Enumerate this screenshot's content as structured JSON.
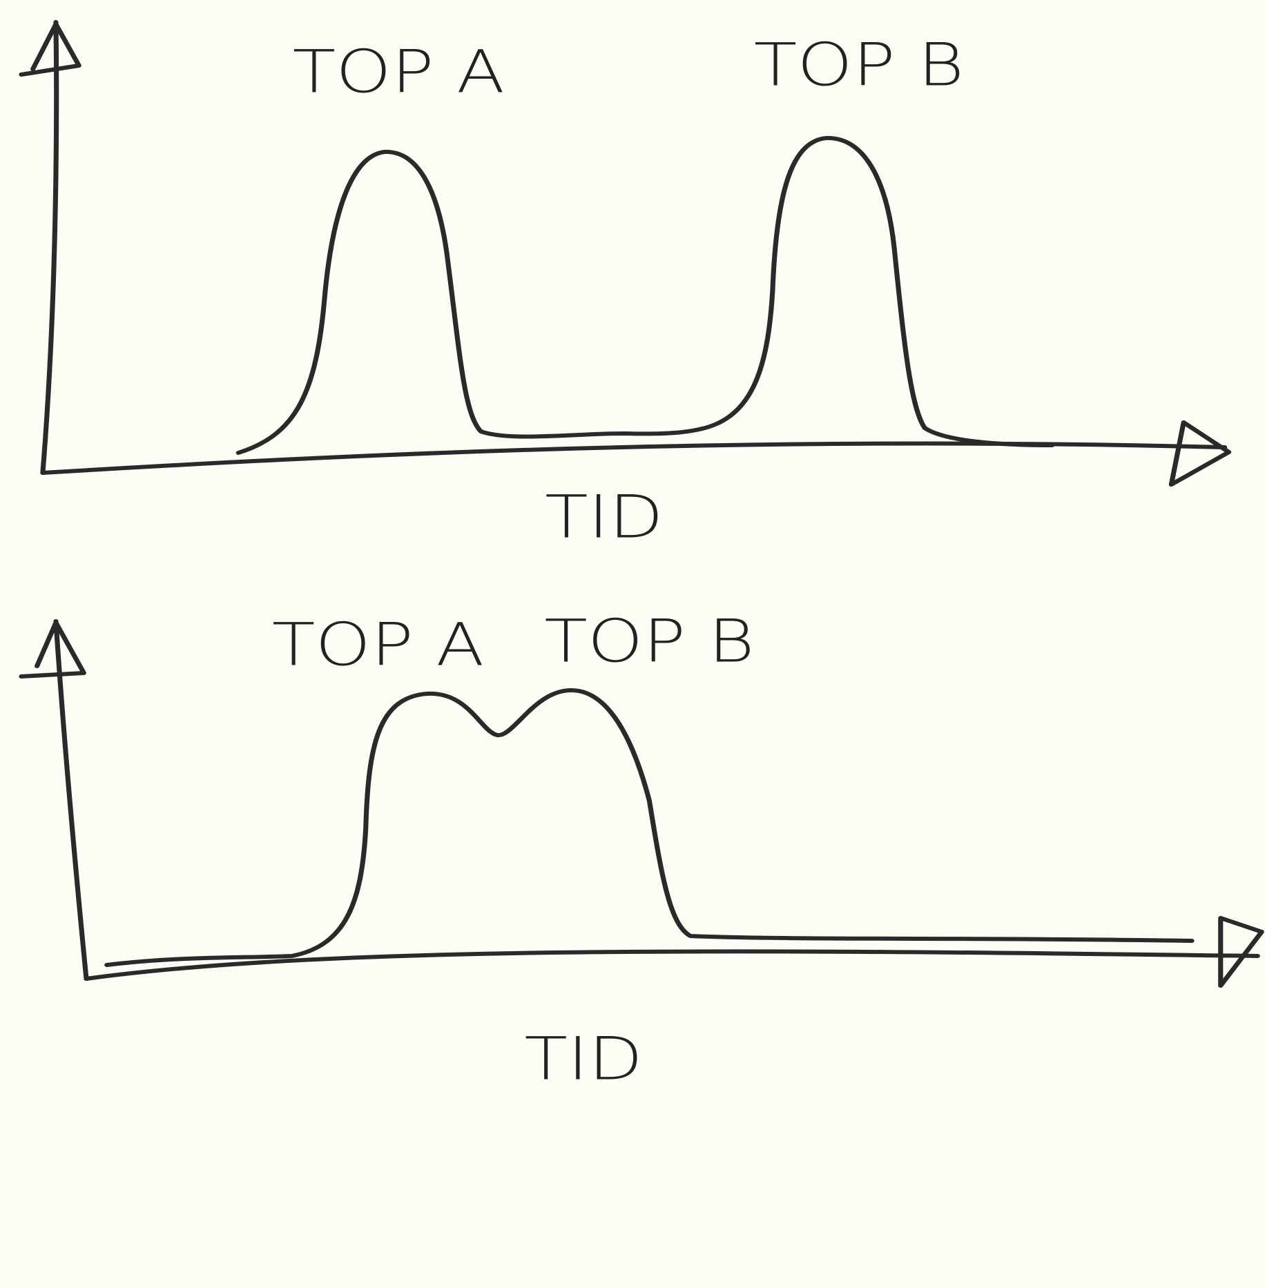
{
  "panels": [
    {
      "peak_labels": [
        "TOP A",
        "TOP B"
      ],
      "x_label": "TID"
    },
    {
      "peak_labels": [
        "TOP A",
        "TOP B"
      ],
      "x_label": "TID"
    }
  ]
}
